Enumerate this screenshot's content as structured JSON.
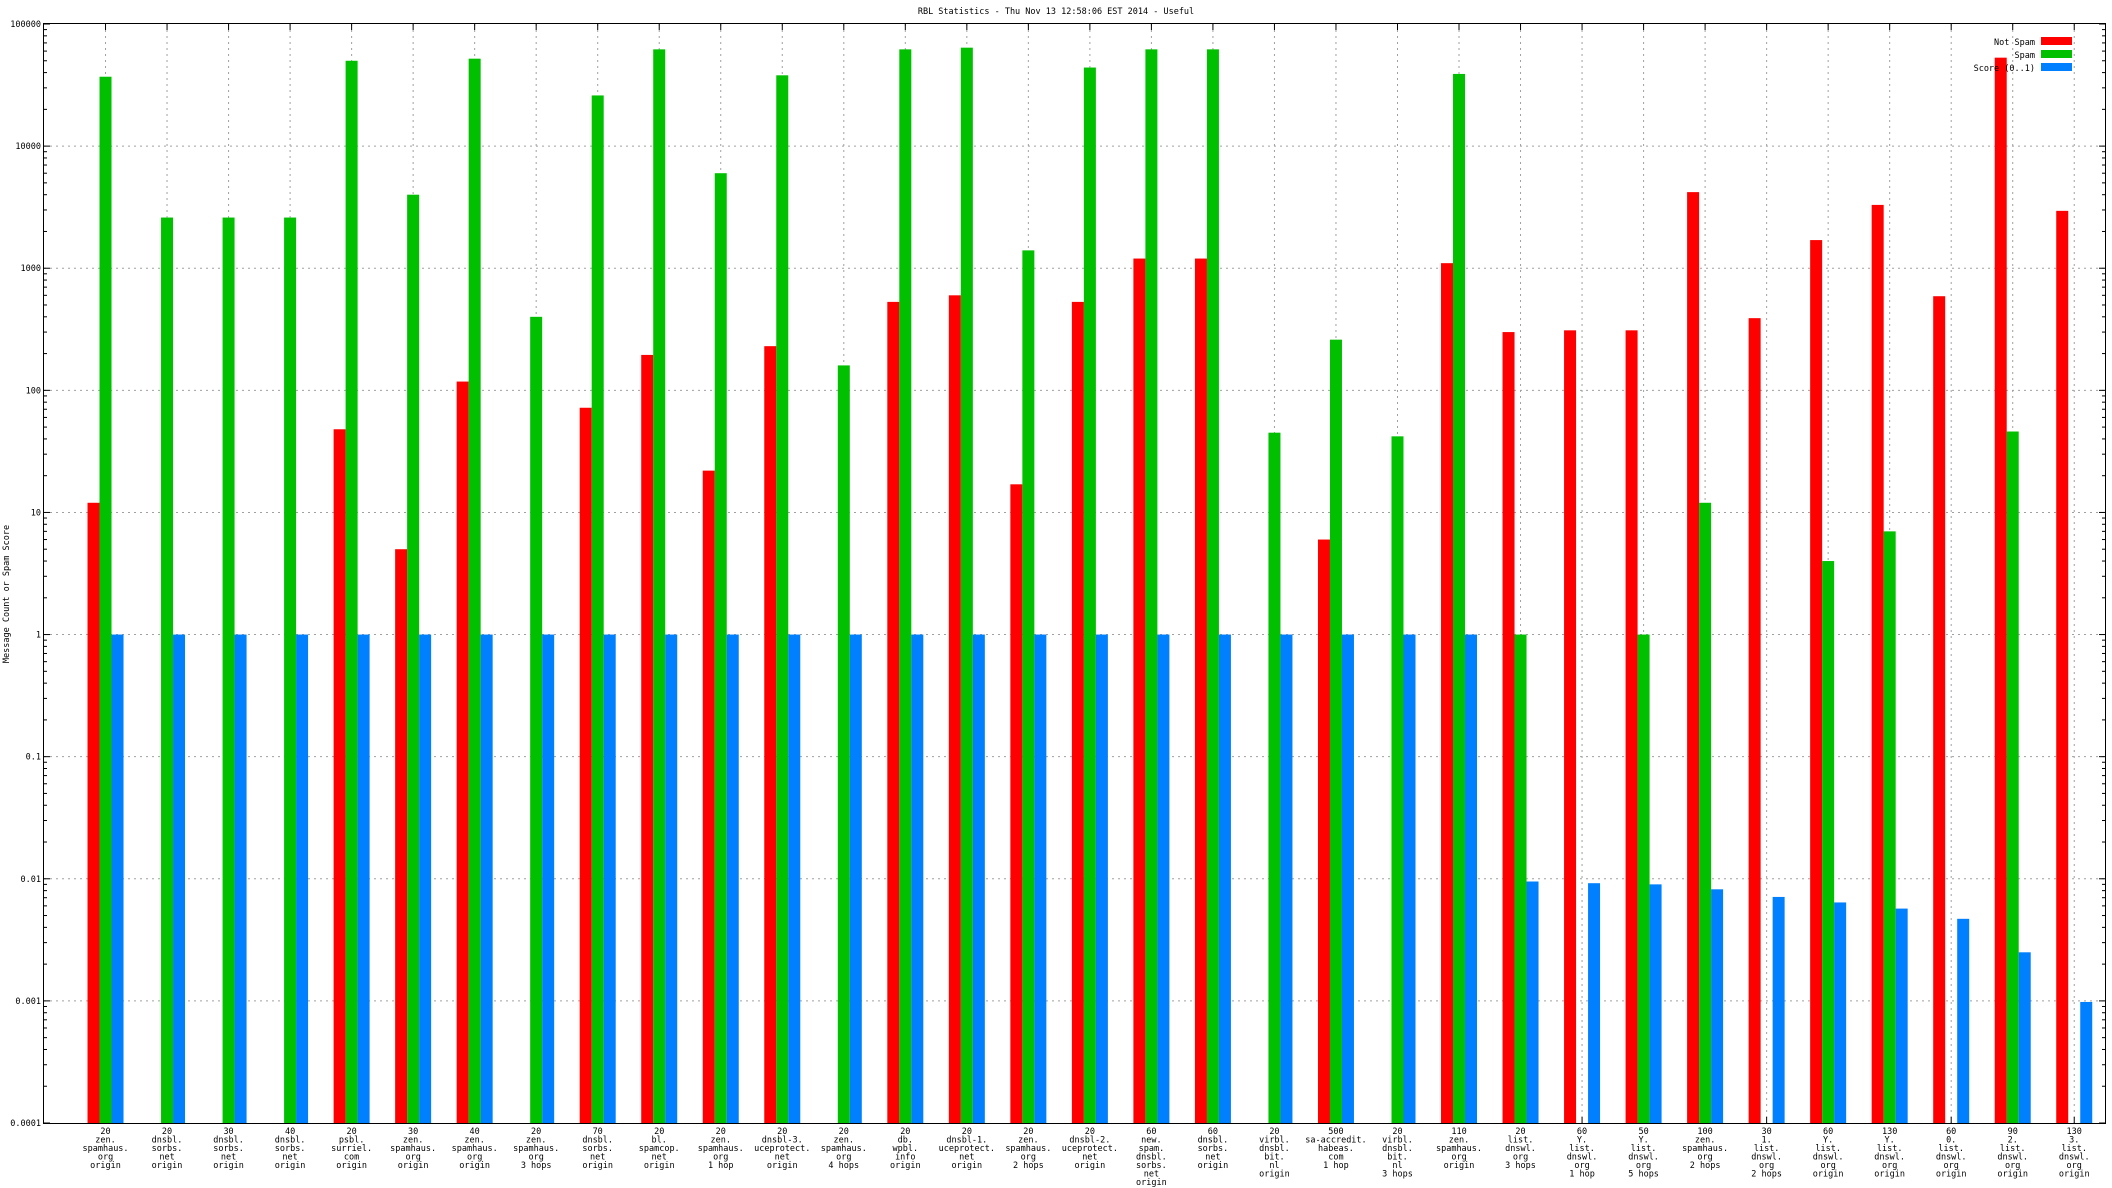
{
  "chart_data": {
    "type": "bar",
    "title": "RBL Statistics - Thu Nov 13 12:58:06 EST 2014 - Useful",
    "ylabel": "Message Count or Spam Score",
    "xlabel": "",
    "yscale": "log",
    "ylim": [
      0.0001,
      100000
    ],
    "yticks": [
      "100000",
      "10000",
      "1000",
      "100",
      "10",
      "1",
      "0.1",
      "0.01",
      "0.001",
      "0.0001"
    ],
    "grid": true,
    "legend_position": "top-right",
    "categories": [
      [
        "20",
        "zen.",
        "spamhaus.",
        "org",
        "origin"
      ],
      [
        "20",
        "dnsbl.",
        "sorbs.",
        "net",
        "origin"
      ],
      [
        "30",
        "dnsbl.",
        "sorbs.",
        "net",
        "origin"
      ],
      [
        "40",
        "dnsbl.",
        "sorbs.",
        "net",
        "origin"
      ],
      [
        "20",
        "psbl.",
        "surriel.",
        "com",
        "origin"
      ],
      [
        "30",
        "zen.",
        "spamhaus.",
        "org",
        "origin"
      ],
      [
        "40",
        "zen.",
        "spamhaus.",
        "org",
        "origin"
      ],
      [
        "20",
        "zen.",
        "spamhaus.",
        "org",
        "3 hops"
      ],
      [
        "70",
        "dnsbl.",
        "sorbs.",
        "net",
        "origin"
      ],
      [
        "20",
        "bl.",
        "spamcop.",
        "net",
        "origin"
      ],
      [
        "20",
        "zen.",
        "spamhaus.",
        "org",
        "1 hop"
      ],
      [
        "20",
        "dnsbl-3.",
        "uceprotect.",
        "net",
        "origin"
      ],
      [
        "20",
        "zen.",
        "spamhaus.",
        "org",
        "4 hops"
      ],
      [
        "20",
        "db.",
        "wpbl.",
        "info",
        "origin"
      ],
      [
        "20",
        "dnsbl-1.",
        "uceprotect.",
        "net",
        "origin"
      ],
      [
        "20",
        "zen.",
        "spamhaus.",
        "org",
        "2 hops"
      ],
      [
        "20",
        "dnsbl-2.",
        "uceprotect.",
        "net",
        "origin"
      ],
      [
        "60",
        "new.",
        "spam.",
        "dnsbl.",
        "sorbs.",
        "net",
        "origin"
      ],
      [
        "60",
        "dnsbl.",
        "sorbs.",
        "net",
        "origin"
      ],
      [
        "20",
        "virbl.",
        "dnsbl.",
        "bit.",
        "nl",
        "origin"
      ],
      [
        "500",
        "sa-accredit.",
        "habeas.",
        "com",
        "1 hop"
      ],
      [
        "20",
        "virbl.",
        "dnsbl.",
        "bit.",
        "nl",
        "3 hops"
      ],
      [
        "110",
        "zen.",
        "spamhaus.",
        "org",
        "origin"
      ],
      [
        "20",
        "list.",
        "dnswl.",
        "org",
        "3 hops"
      ],
      [
        "60",
        "Y.",
        "list.",
        "dnswl.",
        "org",
        "1 hop"
      ],
      [
        "50",
        "Y.",
        "list.",
        "dnswl.",
        "org",
        "5 hops"
      ],
      [
        "100",
        "zen.",
        "spamhaus.",
        "org",
        "2 hops"
      ],
      [
        "30",
        "1.",
        "list.",
        "dnswl.",
        "org",
        "2 hops"
      ],
      [
        "60",
        "Y.",
        "list.",
        "dnswl.",
        "org",
        "origin"
      ],
      [
        "130",
        "Y.",
        "list.",
        "dnswl.",
        "org",
        "origin"
      ],
      [
        "60",
        "0.",
        "list.",
        "dnswl.",
        "org",
        "origin"
      ],
      [
        "90",
        "2.",
        "list.",
        "dnswl.",
        "org",
        "origin"
      ],
      [
        "130",
        "3.",
        "list.",
        "dnswl.",
        "org",
        "origin"
      ]
    ],
    "series": [
      {
        "name": "Not Spam",
        "color": "#ff0000",
        "values": [
          12,
          null,
          null,
          null,
          48,
          5,
          118,
          null,
          72,
          195,
          22,
          230,
          null,
          530,
          600,
          17,
          530,
          1200,
          1200,
          null,
          6,
          null,
          1100,
          300,
          310,
          310,
          4200,
          390,
          1700,
          3300,
          590,
          53000,
          2950
        ]
      },
      {
        "name": "Spam",
        "color": "#00c000",
        "values": [
          37000,
          2600,
          2600,
          2600,
          50000,
          4000,
          52000,
          400,
          26000,
          62000,
          6000,
          38000,
          160,
          62000,
          64000,
          1400,
          44000,
          62000,
          62000,
          45,
          260,
          42,
          39000,
          1,
          null,
          1,
          12,
          null,
          4,
          7,
          null,
          46,
          null
        ]
      },
      {
        "name": "Score (0..1)",
        "color": "#0080ff",
        "values": [
          1,
          1,
          1,
          1,
          1,
          1,
          1,
          1,
          1,
          1,
          1,
          1,
          1,
          1,
          1,
          1,
          1,
          1,
          1,
          1,
          1,
          1,
          1,
          0.0095,
          0.0092,
          0.009,
          0.0082,
          0.0071,
          0.0064,
          0.0057,
          0.0047,
          0.0025,
          0.00098
        ]
      }
    ]
  }
}
